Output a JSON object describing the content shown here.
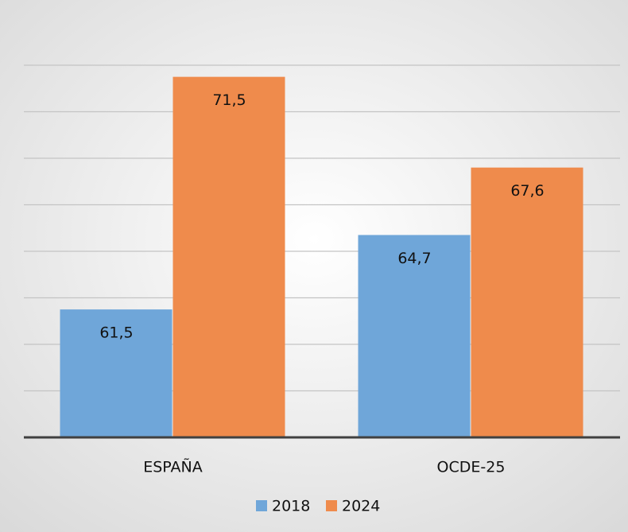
{
  "chart_data": {
    "type": "bar",
    "categories": [
      "ESPAÑA",
      "OCDE-25"
    ],
    "series": [
      {
        "name": "2018",
        "color": "#6fa6d9",
        "values": [
          61.5,
          64.7
        ],
        "value_labels": [
          "61,5",
          "64,7"
        ]
      },
      {
        "name": "2024",
        "color": "#ef8b4c",
        "values": [
          71.5,
          67.6
        ],
        "value_labels": [
          "71,5",
          "67,6"
        ]
      }
    ],
    "ylim": [
      56,
      74
    ],
    "yticks": [
      56,
      58,
      60,
      62,
      64,
      66,
      68,
      70,
      72
    ],
    "grid": true,
    "legend": "bottom"
  }
}
